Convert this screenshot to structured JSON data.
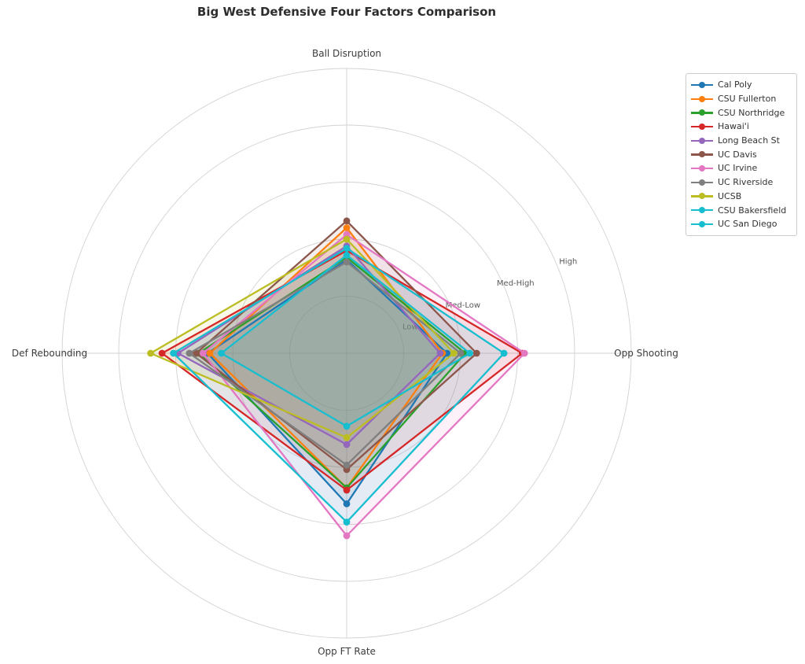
{
  "title": "Big West Defensive Four Factors Comparison",
  "chart_data": {
    "type": "radar",
    "axes": [
      "Ball Disruption",
      "Opp Shooting",
      "Opp FT Rate",
      "Def Rebounding"
    ],
    "radial_axis": {
      "tick_values": [
        0.25,
        0.5,
        0.75,
        1.0
      ],
      "tick_labels": [
        "Low",
        "Med-Low",
        "Med-High",
        "High"
      ],
      "max": 1.25,
      "grid": "on",
      "tick_label_angle_deg": 22.5
    },
    "value_order": [
      "ball_disruption",
      "opp_shooting",
      "opp_ft_rate",
      "def_rebounding"
    ],
    "series": [
      {
        "name": "Cal Poly",
        "color": "#1f77b4",
        "values": [
          0.41,
          0.44,
          0.66,
          0.61
        ]
      },
      {
        "name": "CSU Fullerton",
        "color": "#ff7f0e",
        "values": [
          0.55,
          0.42,
          0.59,
          0.6
        ]
      },
      {
        "name": "CSU Northridge",
        "color": "#2ca02c",
        "values": [
          0.42,
          0.52,
          0.59,
          0.65
        ]
      },
      {
        "name": "Hawai'i",
        "color": "#d62728",
        "values": [
          0.45,
          0.77,
          0.6,
          0.81
        ]
      },
      {
        "name": "Long Beach St",
        "color": "#9467bd",
        "values": [
          0.47,
          0.41,
          0.4,
          0.74
        ]
      },
      {
        "name": "UC Davis",
        "color": "#8c564b",
        "values": [
          0.58,
          0.57,
          0.51,
          0.66
        ]
      },
      {
        "name": "UC Irvine",
        "color": "#e377c2",
        "values": [
          0.52,
          0.78,
          0.8,
          0.63
        ]
      },
      {
        "name": "UC Riverside",
        "color": "#7f7f7f",
        "values": [
          0.4,
          0.5,
          0.49,
          0.69
        ]
      },
      {
        "name": "UCSB",
        "color": "#bcbd22",
        "values": [
          0.5,
          0.47,
          0.37,
          0.86
        ]
      },
      {
        "name": "CSU Bakersfield",
        "color": "#17becf",
        "values": [
          0.46,
          0.69,
          0.74,
          0.76
        ]
      },
      {
        "name": "UC San Diego",
        "color": "#17becf",
        "values": [
          0.43,
          0.54,
          0.32,
          0.55
        ]
      }
    ],
    "legend_position": "upper right",
    "style": {
      "grid_color": "#d2d2d2",
      "tick_label_color": "#595959",
      "fill_opacity": 0.1,
      "line_width": 2.3,
      "marker_radius": 4.4
    }
  },
  "legend": {
    "items": [
      {
        "label": "Cal Poly",
        "color": "#1f77b4"
      },
      {
        "label": "CSU Fullerton",
        "color": "#ff7f0e"
      },
      {
        "label": "CSU Northridge",
        "color": "#2ca02c"
      },
      {
        "label": "Hawai'i",
        "color": "#d62728"
      },
      {
        "label": "Long Beach St",
        "color": "#9467bd"
      },
      {
        "label": "UC Davis",
        "color": "#8c564b"
      },
      {
        "label": "UC Irvine",
        "color": "#e377c2"
      },
      {
        "label": "UC Riverside",
        "color": "#7f7f7f"
      },
      {
        "label": "UCSB",
        "color": "#bcbd22"
      },
      {
        "label": "CSU Bakersfield",
        "color": "#17becf"
      },
      {
        "label": "UC San Diego",
        "color": "#17becf"
      }
    ]
  }
}
